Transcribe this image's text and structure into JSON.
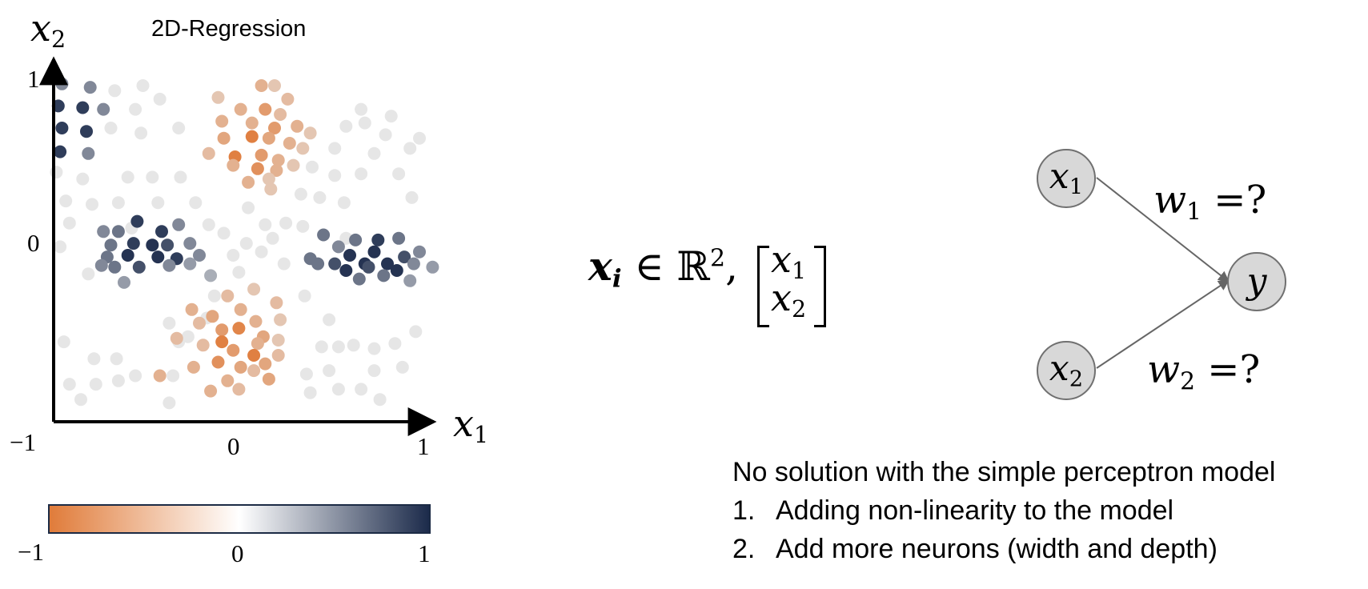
{
  "plot": {
    "title": "2D-Regression",
    "y_axis_label": "x",
    "y_axis_sub": "2",
    "x_axis_label": "x",
    "x_axis_sub": "1",
    "y_tick_top": "1",
    "y_tick_mid": "0",
    "x_tick_left": "−1",
    "x_tick_mid": "0",
    "x_tick_right": "1",
    "colorbar_min": "−1",
    "colorbar_mid": "0",
    "colorbar_max": "1",
    "colors": {
      "low": "#e07b39",
      "mid": "#ffffff",
      "high": "#1b2a4a",
      "neutral": "#e6e6e6"
    }
  },
  "chart_data": {
    "type": "scatter",
    "title": "2D-Regression",
    "xlabel": "x1",
    "ylabel": "x2",
    "xlim": [
      -1,
      1
    ],
    "ylim": [
      -1,
      1
    ],
    "colorbar": {
      "min": -1,
      "max": 1,
      "low_color": "#e07b39",
      "high_color": "#1b2a4a"
    },
    "points": [
      [
        -0.93,
        0.93,
        0.5
      ],
      [
        -0.78,
        0.91,
        0.5
      ],
      [
        -0.95,
        0.8,
        0.9
      ],
      [
        -0.82,
        0.79,
        0.9
      ],
      [
        -0.71,
        0.78,
        0.5
      ],
      [
        -0.93,
        0.67,
        0.9
      ],
      [
        -0.8,
        0.65,
        0.9
      ],
      [
        -0.94,
        0.53,
        0.9
      ],
      [
        -0.79,
        0.52,
        0.5
      ],
      [
        -0.5,
        0.92,
        0
      ],
      [
        -0.65,
        0.89,
        0
      ],
      [
        -0.41,
        0.84,
        0
      ],
      [
        -0.54,
        0.78,
        0
      ],
      [
        -0.67,
        0.67,
        0
      ],
      [
        -0.51,
        0.64,
        0
      ],
      [
        -0.31,
        0.67,
        0
      ],
      [
        -0.96,
        0.41,
        0
      ],
      [
        -0.82,
        0.37,
        0
      ],
      [
        -0.58,
        0.38,
        0
      ],
      [
        -0.45,
        0.38,
        0
      ],
      [
        -0.3,
        0.38,
        0
      ],
      [
        -0.91,
        0.24,
        0
      ],
      [
        -0.63,
        0.23,
        0
      ],
      [
        -0.77,
        0.22,
        0
      ],
      [
        -0.42,
        0.23,
        0
      ],
      [
        -0.22,
        0.23,
        0
      ],
      [
        -0.89,
        0.11,
        0
      ],
      [
        -0.71,
        0.06,
        0
      ],
      [
        -0.56,
        0.08,
        0
      ],
      [
        -0.94,
        -0.03,
        0
      ],
      [
        -0.79,
        -0.19,
        0
      ],
      [
        -0.92,
        -0.59,
        0
      ],
      [
        -0.89,
        -0.84,
        0
      ],
      [
        -0.83,
        -0.93,
        0
      ],
      [
        -0.75,
        -0.84,
        0
      ],
      [
        -0.76,
        -0.69,
        0
      ],
      [
        -0.64,
        -0.69,
        0
      ],
      [
        -0.54,
        -0.79,
        0
      ],
      [
        -0.63,
        -0.82,
        0
      ],
      [
        -0.31,
        -0.59,
        0
      ],
      [
        -0.34,
        -0.79,
        0
      ],
      [
        -0.12,
        -0.32,
        0
      ],
      [
        -0.07,
        0.05,
        0
      ],
      [
        0.01,
        -0.18,
        0
      ],
      [
        -0.02,
        -0.08,
        0
      ],
      [
        0.06,
        0.2,
        0
      ],
      [
        -0.15,
        0.1,
        0
      ],
      [
        0.15,
        0.1,
        0
      ],
      [
        0.05,
        -0.01,
        0
      ],
      [
        0.13,
        -0.06,
        0
      ],
      [
        0.19,
        0.02,
        0
      ],
      [
        0.25,
        -0.13,
        0
      ],
      [
        0.26,
        0.11,
        0
      ],
      [
        0.34,
        0.28,
        0
      ],
      [
        0.35,
        0.09,
        0
      ],
      [
        0.4,
        0.44,
        0
      ],
      [
        0.52,
        0.39,
        0
      ],
      [
        0.66,
        0.4,
        0
      ],
      [
        0.52,
        0.55,
        0
      ],
      [
        0.73,
        0.52,
        0
      ],
      [
        0.79,
        0.63,
        0
      ],
      [
        0.86,
        0.4,
        0
      ],
      [
        0.92,
        0.55,
        0
      ],
      [
        0.93,
        0.26,
        0
      ],
      [
        0.57,
        0.23,
        0
      ],
      [
        0.44,
        0.26,
        0
      ],
      [
        0.68,
        0.7,
        0
      ],
      [
        0.58,
        0.68,
        0
      ],
      [
        0.66,
        0.78,
        0
      ],
      [
        0.82,
        0.74,
        0
      ],
      [
        0.97,
        0.61,
        0
      ],
      [
        0.58,
        0.02,
        0
      ],
      [
        0.36,
        -0.32,
        0
      ],
      [
        0.49,
        -0.46,
        0
      ],
      [
        0.54,
        -0.62,
        0
      ],
      [
        0.45,
        -0.62,
        0
      ],
      [
        0.62,
        -0.61,
        0
      ],
      [
        0.73,
        -0.63,
        0
      ],
      [
        0.84,
        -0.6,
        0
      ],
      [
        0.95,
        -0.53,
        0
      ],
      [
        0.73,
        -0.76,
        0
      ],
      [
        0.49,
        -0.76,
        0
      ],
      [
        0.37,
        -0.78,
        0
      ],
      [
        0.88,
        -0.74,
        0
      ],
      [
        0.66,
        -0.87,
        0
      ],
      [
        0.76,
        -0.93,
        0
      ],
      [
        0.54,
        -0.87,
        0
      ],
      [
        0.39,
        -0.89,
        0
      ],
      [
        -0.36,
        -0.95,
        0
      ],
      [
        -0.36,
        -0.48,
        0
      ],
      [
        -0.26,
        -0.56,
        0
      ],
      [
        -0.16,
        -0.45,
        0
      ],
      [
        -0.71,
        0.06,
        0.5
      ],
      [
        -0.63,
        0.06,
        0.6
      ],
      [
        -0.53,
        0.12,
        0.9
      ],
      [
        -0.4,
        0.06,
        0.9
      ],
      [
        -0.31,
        0.1,
        0.5
      ],
      [
        -0.67,
        -0.02,
        0.6
      ],
      [
        -0.55,
        -0.01,
        0.9
      ],
      [
        -0.45,
        -0.02,
        0.95
      ],
      [
        -0.37,
        -0.02,
        0.8
      ],
      [
        -0.25,
        -0.01,
        0.5
      ],
      [
        -0.69,
        -0.09,
        0.6
      ],
      [
        -0.58,
        -0.08,
        0.95
      ],
      [
        -0.42,
        -0.09,
        0.95
      ],
      [
        -0.32,
        -0.1,
        0.9
      ],
      [
        -0.2,
        -0.08,
        0.5
      ],
      [
        -0.72,
        -0.14,
        0.5
      ],
      [
        -0.65,
        -0.15,
        0.6
      ],
      [
        -0.52,
        -0.15,
        0.8
      ],
      [
        -0.36,
        -0.14,
        0.5
      ],
      [
        -0.25,
        -0.13,
        0.4
      ],
      [
        -0.6,
        -0.24,
        0.4
      ],
      [
        -0.14,
        -0.2,
        0.3
      ],
      [
        0.46,
        0.04,
        0.6
      ],
      [
        0.63,
        0.01,
        0.6
      ],
      [
        0.75,
        0.01,
        0.9
      ],
      [
        0.86,
        0.02,
        0.6
      ],
      [
        0.54,
        -0.03,
        0.5
      ],
      [
        0.39,
        -0.1,
        0.6
      ],
      [
        0.6,
        -0.08,
        0.95
      ],
      [
        0.73,
        -0.06,
        0.95
      ],
      [
        0.89,
        -0.09,
        0.8
      ],
      [
        0.97,
        -0.06,
        0.5
      ],
      [
        0.43,
        -0.13,
        0.6
      ],
      [
        0.52,
        -0.13,
        0.8
      ],
      [
        0.68,
        -0.13,
        0.95
      ],
      [
        0.8,
        -0.13,
        0.95
      ],
      [
        0.94,
        -0.13,
        0.5
      ],
      [
        0.58,
        -0.17,
        0.95
      ],
      [
        0.7,
        -0.15,
        0.8
      ],
      [
        0.85,
        -0.17,
        0.95
      ],
      [
        1.04,
        -0.15,
        0.4
      ],
      [
        0.65,
        -0.22,
        0.6
      ],
      [
        0.78,
        -0.2,
        0.6
      ],
      [
        0.92,
        -0.23,
        0.4
      ],
      [
        -0.1,
        0.85,
        -0.3
      ],
      [
        0.02,
        0.78,
        -0.5
      ],
      [
        0.15,
        0.78,
        -0.7
      ],
      [
        0.23,
        0.75,
        -0.4
      ],
      [
        -0.08,
        0.71,
        -0.5
      ],
      [
        0.08,
        0.7,
        -0.5
      ],
      [
        0.2,
        0.67,
        -0.7
      ],
      [
        0.32,
        0.68,
        -0.5
      ],
      [
        0.39,
        0.64,
        -0.3
      ],
      [
        -0.07,
        0.61,
        -0.6
      ],
      [
        0.08,
        0.62,
        -0.95
      ],
      [
        0.17,
        0.61,
        -0.6
      ],
      [
        0.28,
        0.58,
        -0.5
      ],
      [
        0.35,
        0.55,
        -0.3
      ],
      [
        -0.15,
        0.52,
        -0.4
      ],
      [
        -0.01,
        0.5,
        -0.95
      ],
      [
        0.13,
        0.51,
        -0.7
      ],
      [
        0.22,
        0.48,
        -0.5
      ],
      [
        -0.02,
        0.45,
        -0.5
      ],
      [
        0.11,
        0.43,
        -0.8
      ],
      [
        0.21,
        0.42,
        -0.5
      ],
      [
        0.3,
        0.45,
        -0.3
      ],
      [
        0.06,
        0.35,
        -0.5
      ],
      [
        0.17,
        0.37,
        -0.3
      ],
      [
        0.2,
        0.92,
        -0.3
      ],
      [
        0.13,
        0.92,
        -0.5
      ],
      [
        0.27,
        0.84,
        -0.4
      ],
      [
        0.18,
        0.31,
        -0.3
      ],
      [
        0.09,
        -0.28,
        -0.3
      ],
      [
        -0.05,
        -0.32,
        -0.4
      ],
      [
        0.21,
        -0.36,
        -0.4
      ],
      [
        -0.24,
        -0.4,
        -0.5
      ],
      [
        -0.13,
        -0.44,
        -0.6
      ],
      [
        0.02,
        -0.4,
        -0.5
      ],
      [
        0.1,
        -0.47,
        -0.5
      ],
      [
        0.23,
        -0.46,
        -0.3
      ],
      [
        -0.2,
        -0.48,
        -0.4
      ],
      [
        -0.08,
        -0.52,
        -0.7
      ],
      [
        0.01,
        -0.51,
        -0.9
      ],
      [
        0.14,
        -0.56,
        -0.6
      ],
      [
        -0.32,
        -0.57,
        -0.4
      ],
      [
        -0.08,
        -0.59,
        -0.95
      ],
      [
        0.11,
        -0.6,
        -0.5
      ],
      [
        0.22,
        -0.58,
        -0.3
      ],
      [
        -0.18,
        -0.61,
        -0.4
      ],
      [
        -0.02,
        -0.64,
        -0.7
      ],
      [
        0.09,
        -0.67,
        -0.95
      ],
      [
        0.22,
        -0.67,
        -0.4
      ],
      [
        -0.1,
        -0.71,
        -0.8
      ],
      [
        0.02,
        -0.74,
        -0.6
      ],
      [
        0.15,
        -0.72,
        -0.6
      ],
      [
        -0.23,
        -0.74,
        -0.5
      ],
      [
        -0.05,
        -0.82,
        -0.5
      ],
      [
        0.09,
        -0.76,
        -0.4
      ],
      [
        0.17,
        -0.81,
        -0.6
      ],
      [
        -0.41,
        -0.79,
        -0.5
      ],
      [
        -0.14,
        -0.88,
        -0.5
      ],
      [
        0.01,
        -0.87,
        -0.4
      ]
    ]
  },
  "formula": {
    "x": "x",
    "i": "i",
    "in": "∈",
    "R": "ℝ",
    "sup": "2",
    "comma": ",",
    "v1": "x",
    "v1_sub": "1",
    "v2": "x",
    "v2_sub": "2"
  },
  "network": {
    "node1": "x",
    "node1_sub": "1",
    "node2": "x",
    "node2_sub": "2",
    "node_out": "y",
    "w1": "w",
    "w1_sub": "1",
    "w1_rest": " =?",
    "w2": "w",
    "w2_sub": "2",
    "w2_rest": " =?"
  },
  "notes": {
    "heading": "No solution with the simple perceptron model",
    "items": [
      {
        "num": "1.",
        "text": "Adding non-linearity to the model"
      },
      {
        "num": "2.",
        "text": "Add more neurons (width and depth)"
      }
    ]
  }
}
